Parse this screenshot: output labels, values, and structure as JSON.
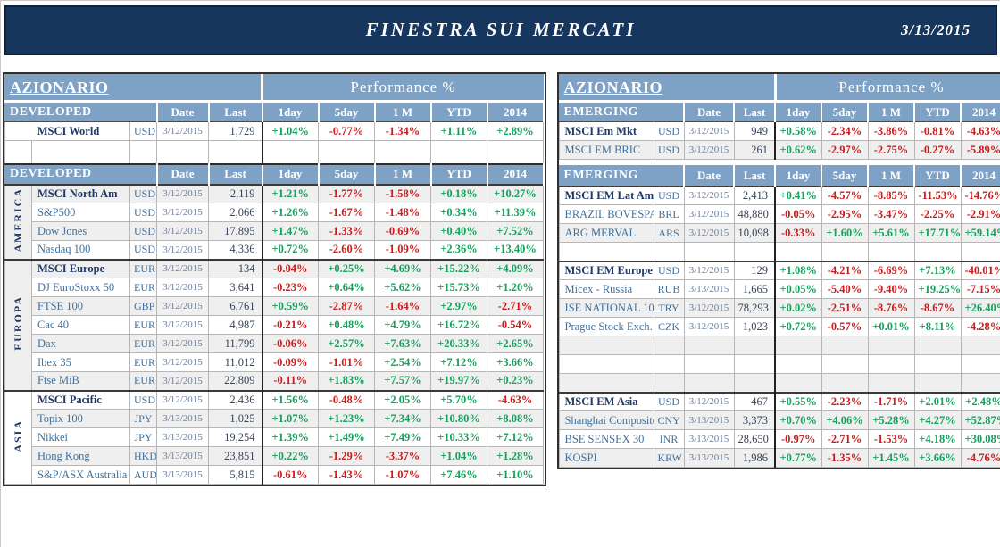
{
  "banner": {
    "title": "FINESTRA SUI MERCATI",
    "date": "3/13/2015"
  },
  "colors": {
    "positive": "#17A05C",
    "negative": "#CC1B1B",
    "header_blue": "#7EA2C6",
    "banner_navy": "#16365D"
  },
  "tables": [
    {
      "id": "developed",
      "title": "AZIONARIO",
      "performance_label": "Performance  %",
      "header_label": "DEVELOPED",
      "columns": [
        "Date",
        "Last",
        "1day",
        "5day",
        "1 M",
        "YTD",
        "2014"
      ],
      "has_region_column": true,
      "rows": [
        {
          "t": "colheader"
        },
        {
          "t": "data",
          "name": "MSCI World",
          "bold": true,
          "center": true,
          "ccy": "USD",
          "date": "3/12/2015",
          "last": "1,729",
          "perf": [
            "+1.04%",
            "-0.77%",
            "-1.34%",
            "+1.11%",
            "+2.89%"
          ],
          "shade": false
        },
        {
          "t": "empty"
        },
        {
          "t": "colheader",
          "sect": true
        },
        {
          "t": "data",
          "region": {
            "label": "AMERICA",
            "span": 4
          },
          "sect": true,
          "name": "MSCI North Am",
          "bold": true,
          "ccy": "USD",
          "date": "3/12/2015",
          "last": "2,119",
          "perf": [
            "+1.21%",
            "-1.77%",
            "-1.58%",
            "+0.18%",
            "+10.27%"
          ],
          "shade": true
        },
        {
          "t": "data",
          "name": "S&P500",
          "ccy": "USD",
          "date": "3/12/2015",
          "last": "2,066",
          "perf": [
            "+1.26%",
            "-1.67%",
            "-1.48%",
            "+0.34%",
            "+11.39%"
          ],
          "shade": false
        },
        {
          "t": "data",
          "name": "Dow Jones",
          "ccy": "USD",
          "date": "3/12/2015",
          "last": "17,895",
          "perf": [
            "+1.47%",
            "-1.33%",
            "-0.69%",
            "+0.40%",
            "+7.52%"
          ],
          "shade": true
        },
        {
          "t": "data",
          "name": "Nasdaq 100",
          "ccy": "USD",
          "date": "3/12/2015",
          "last": "4,336",
          "perf": [
            "+0.72%",
            "-2.60%",
            "-1.09%",
            "+2.36%",
            "+13.40%"
          ],
          "shade": false
        },
        {
          "t": "data",
          "region": {
            "label": "EUROPA",
            "span": 7
          },
          "sect": true,
          "name": "MSCI Europe",
          "bold": true,
          "ccy": "EUR",
          "date": "3/12/2015",
          "last": "134",
          "perf": [
            "-0.04%",
            "+0.25%",
            "+4.69%",
            "+15.22%",
            "+4.09%"
          ],
          "shade": true
        },
        {
          "t": "data",
          "name": "DJ EuroStoxx 50",
          "ccy": "EUR",
          "date": "3/12/2015",
          "last": "3,641",
          "perf": [
            "-0.23%",
            "+0.64%",
            "+5.62%",
            "+15.73%",
            "+1.20%"
          ],
          "shade": false
        },
        {
          "t": "data",
          "name": "FTSE 100",
          "ccy": "GBP",
          "date": "3/12/2015",
          "last": "6,761",
          "perf": [
            "+0.59%",
            "-2.87%",
            "-1.64%",
            "+2.97%",
            "-2.71%"
          ],
          "shade": true
        },
        {
          "t": "data",
          "name": "Cac 40",
          "ccy": "EUR",
          "date": "3/12/2015",
          "last": "4,987",
          "perf": [
            "-0.21%",
            "+0.48%",
            "+4.79%",
            "+16.72%",
            "-0.54%"
          ],
          "shade": false
        },
        {
          "t": "data",
          "name": "Dax",
          "ccy": "EUR",
          "date": "3/12/2015",
          "last": "11,799",
          "perf": [
            "-0.06%",
            "+2.57%",
            "+7.63%",
            "+20.33%",
            "+2.65%"
          ],
          "shade": true
        },
        {
          "t": "data",
          "name": "Ibex 35",
          "ccy": "EUR",
          "date": "3/12/2015",
          "last": "11,012",
          "perf": [
            "-0.09%",
            "-1.01%",
            "+2.54%",
            "+7.12%",
            "+3.66%"
          ],
          "shade": false
        },
        {
          "t": "data",
          "name": "Ftse MiB",
          "ccy": "EUR",
          "date": "3/12/2015",
          "last": "22,809",
          "perf": [
            "-0.11%",
            "+1.83%",
            "+7.57%",
            "+19.97%",
            "+0.23%"
          ],
          "shade": true
        },
        {
          "t": "data",
          "region": {
            "label": "ASIA",
            "span": 5
          },
          "sect": true,
          "name": "MSCI Pacific",
          "bold": true,
          "ccy": "USD",
          "date": "3/12/2015",
          "last": "2,436",
          "perf": [
            "+1.56%",
            "-0.48%",
            "+2.05%",
            "+5.70%",
            "-4.63%"
          ],
          "shade": false
        },
        {
          "t": "data",
          "name": "Topix 100",
          "ccy": "JPY",
          "date": "3/13/2015",
          "last": "1,025",
          "perf": [
            "+1.07%",
            "+1.23%",
            "+7.34%",
            "+10.80%",
            "+8.08%"
          ],
          "shade": true
        },
        {
          "t": "data",
          "name": "Nikkei",
          "ccy": "JPY",
          "date": "3/13/2015",
          "last": "19,254",
          "perf": [
            "+1.39%",
            "+1.49%",
            "+7.49%",
            "+10.33%",
            "+7.12%"
          ],
          "shade": false
        },
        {
          "t": "data",
          "name": "Hong Kong",
          "ccy": "HKD",
          "date": "3/13/2015",
          "last": "23,851",
          "perf": [
            "+0.22%",
            "-1.29%",
            "-3.37%",
            "+1.04%",
            "+1.28%"
          ],
          "shade": true
        },
        {
          "t": "data",
          "name": "S&P/ASX Australia",
          "ccy": "AUD",
          "date": "3/13/2015",
          "last": "5,815",
          "perf": [
            "-0.61%",
            "-1.43%",
            "-1.07%",
            "+7.46%",
            "+1.10%"
          ],
          "shade": false
        }
      ]
    },
    {
      "id": "emerging",
      "title": "AZIONARIO",
      "performance_label": "Performance  %",
      "header_label": "EMERGING",
      "columns": [
        "Date",
        "Last",
        "1day",
        "5day",
        "1 M",
        "YTD",
        "2014"
      ],
      "has_region_column": false,
      "rows": [
        {
          "t": "colheader"
        },
        {
          "t": "data",
          "name": "MSCI Em Mkt",
          "bold": true,
          "ccy": "USD",
          "date": "3/12/2015",
          "last": "949",
          "perf": [
            "+0.58%",
            "-2.34%",
            "-3.86%",
            "-0.81%",
            "-4.63%"
          ],
          "shade": false
        },
        {
          "t": "data",
          "name": "MSCI EM BRIC",
          "ccy": "USD",
          "date": "3/12/2015",
          "last": "261",
          "perf": [
            "+0.62%",
            "-2.97%",
            "-2.75%",
            "-0.27%",
            "-5.89%"
          ],
          "shade": true
        },
        {
          "t": "gap"
        },
        {
          "t": "colheader"
        },
        {
          "t": "data",
          "name": "MSCI EM Lat Am",
          "bold": true,
          "ccy": "USD",
          "date": "3/12/2015",
          "last": "2,413",
          "perf": [
            "+0.41%",
            "-4.57%",
            "-8.85%",
            "-11.53%",
            "-14.76%"
          ],
          "shade": false,
          "sect": true
        },
        {
          "t": "data",
          "name": "BRAZIL BOVESPA",
          "ccy": "BRL",
          "date": "3/12/2015",
          "last": "48,880",
          "perf": [
            "-0.05%",
            "-2.95%",
            "-3.47%",
            "-2.25%",
            "-2.91%"
          ],
          "shade": false
        },
        {
          "t": "data",
          "name": "ARG MERVAL",
          "ccy": "ARS",
          "date": "3/12/2015",
          "last": "10,098",
          "perf": [
            "-0.33%",
            "+1.60%",
            "+5.61%",
            "+17.71%",
            "+59.14%"
          ],
          "shade": true
        },
        {
          "t": "empty",
          "shade": false
        },
        {
          "t": "data",
          "name": "MSCI EM Europe",
          "bold": true,
          "ccy": "USD",
          "date": "3/12/2015",
          "last": "129",
          "perf": [
            "+1.08%",
            "-4.21%",
            "-6.69%",
            "+7.13%",
            "-40.01%"
          ],
          "shade": false,
          "sect": true
        },
        {
          "t": "data",
          "name": "Micex - Russia",
          "ccy": "RUB",
          "date": "3/13/2015",
          "last": "1,665",
          "perf": [
            "+0.05%",
            "-5.40%",
            "-9.40%",
            "+19.25%",
            "-7.15%"
          ],
          "shade": false
        },
        {
          "t": "data",
          "name": "ISE NATIONAL 100",
          "ccy": "TRY",
          "date": "3/12/2015",
          "last": "78,293",
          "perf": [
            "+0.02%",
            "-2.51%",
            "-8.76%",
            "-8.67%",
            "+26.40%"
          ],
          "shade": true
        },
        {
          "t": "data",
          "name": "Prague Stock Exch.",
          "ccy": "CZK",
          "date": "3/12/2015",
          "last": "1,023",
          "perf": [
            "+0.72%",
            "-0.57%",
            "+0.01%",
            "+8.11%",
            "-4.28%"
          ],
          "shade": false
        },
        {
          "t": "empty",
          "shade": true
        },
        {
          "t": "empty",
          "shade": false
        },
        {
          "t": "empty",
          "shade": true
        },
        {
          "t": "data",
          "name": "MSCI EM Asia",
          "bold": true,
          "ccy": "USD",
          "date": "3/12/2015",
          "last": "467",
          "perf": [
            "+0.55%",
            "-2.23%",
            "-1.71%",
            "+2.01%",
            "+2.48%"
          ],
          "shade": false,
          "sect": true
        },
        {
          "t": "data",
          "name": "Shanghai Composite",
          "ccy": "CNY",
          "date": "3/13/2015",
          "last": "3,373",
          "perf": [
            "+0.70%",
            "+4.06%",
            "+5.28%",
            "+4.27%",
            "+52.87%"
          ],
          "shade": true
        },
        {
          "t": "data",
          "name": "BSE SENSEX 30",
          "ccy": "INR",
          "date": "3/13/2015",
          "last": "28,650",
          "perf": [
            "-0.97%",
            "-2.71%",
            "-1.53%",
            "+4.18%",
            "+30.08%"
          ],
          "shade": false
        },
        {
          "t": "data",
          "name": "KOSPI",
          "ccy": "KRW",
          "date": "3/13/2015",
          "last": "1,986",
          "perf": [
            "+0.77%",
            "-1.35%",
            "+1.45%",
            "+3.66%",
            "-4.76%"
          ],
          "shade": true
        }
      ]
    }
  ]
}
